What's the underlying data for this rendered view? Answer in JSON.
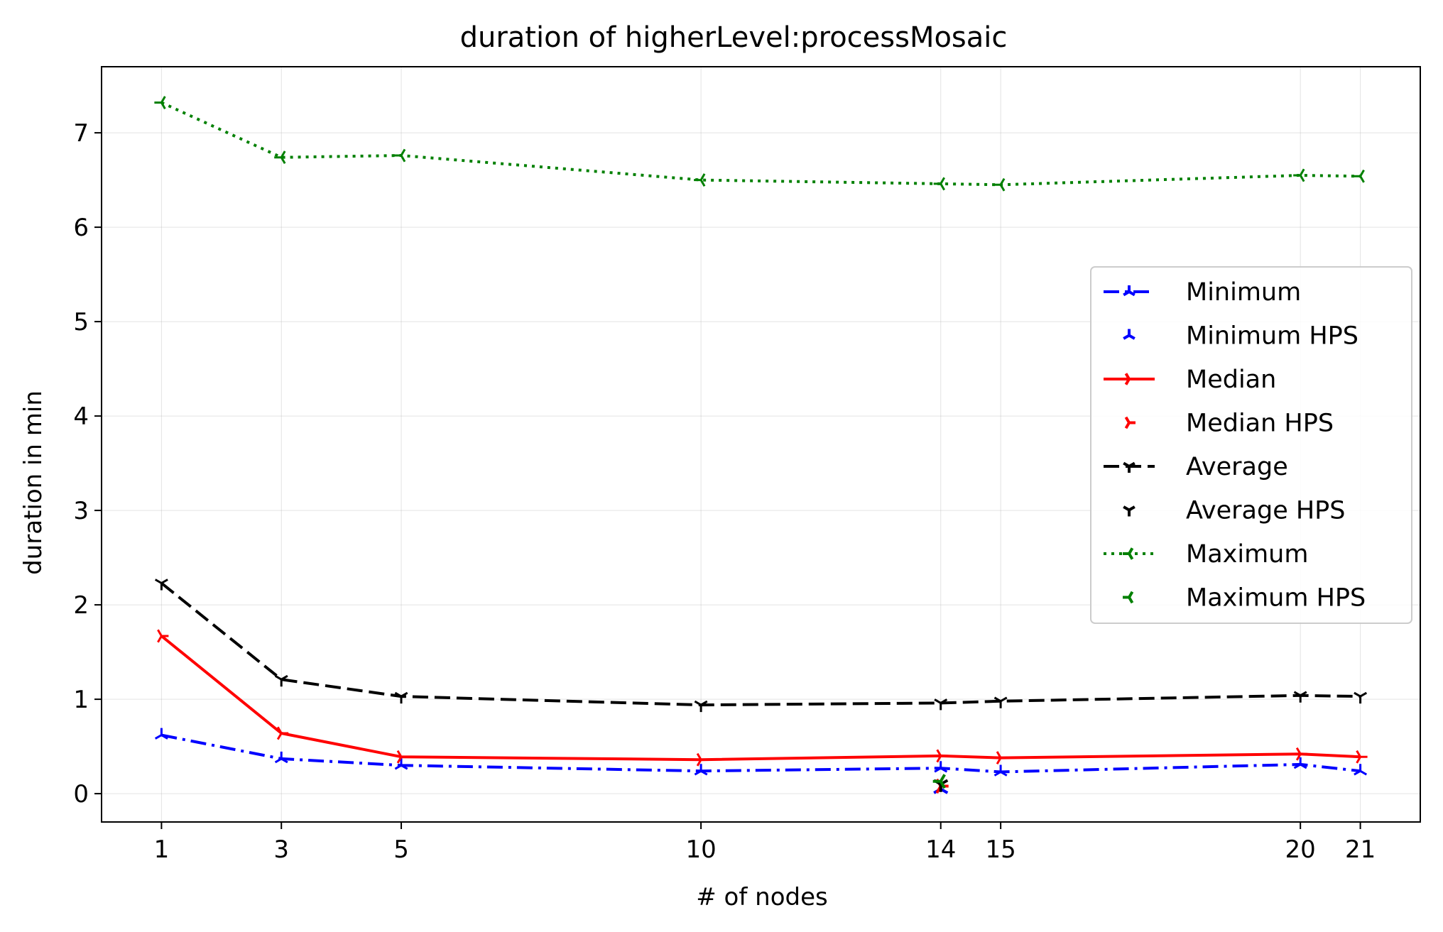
{
  "chart_data": {
    "type": "line",
    "title": "duration of higherLevel:processMosaic",
    "xlabel": "# of nodes",
    "ylabel": "duration in min",
    "xlim": [
      0,
      22
    ],
    "ylim": [
      -0.3,
      7.7
    ],
    "xticks": [
      1,
      3,
      5,
      10,
      14,
      15,
      20,
      21
    ],
    "yticks": [
      0,
      1,
      2,
      3,
      4,
      5,
      6,
      7
    ],
    "grid": true,
    "legend_position": "center-right",
    "series": [
      {
        "name": "Minimum",
        "color": "#0000ff",
        "dash": "dashdot",
        "marker": "tri-up",
        "x": [
          1,
          3,
          5,
          10,
          14,
          15,
          20,
          21
        ],
        "y": [
          0.62,
          0.37,
          0.3,
          0.24,
          0.27,
          0.23,
          0.31,
          0.24
        ]
      },
      {
        "name": "Minimum HPS",
        "color": "#0000ff",
        "dash": "none",
        "marker": "tri-up",
        "x": [
          14
        ],
        "y": [
          0.05
        ]
      },
      {
        "name": "Median",
        "color": "#ff0000",
        "dash": "solid",
        "marker": "tri-right",
        "x": [
          1,
          3,
          5,
          10,
          14,
          15,
          20,
          21
        ],
        "y": [
          1.67,
          0.64,
          0.39,
          0.36,
          0.4,
          0.38,
          0.42,
          0.39
        ]
      },
      {
        "name": "Median HPS",
        "color": "#ff0000",
        "dash": "none",
        "marker": "tri-right",
        "x": [
          14
        ],
        "y": [
          0.08
        ]
      },
      {
        "name": "Average",
        "color": "#000000",
        "dash": "dashed",
        "marker": "tri-down",
        "x": [
          1,
          3,
          5,
          10,
          14,
          15,
          20,
          21
        ],
        "y": [
          2.23,
          1.21,
          1.03,
          0.94,
          0.96,
          0.98,
          1.04,
          1.03
        ]
      },
      {
        "name": "Average HPS",
        "color": "#000000",
        "dash": "none",
        "marker": "tri-down",
        "x": [
          14
        ],
        "y": [
          0.1
        ]
      },
      {
        "name": "Maximum",
        "color": "#008000",
        "dash": "dotted",
        "marker": "tri-left",
        "x": [
          1,
          3,
          5,
          10,
          14,
          15,
          20,
          21
        ],
        "y": [
          7.32,
          6.74,
          6.76,
          6.5,
          6.46,
          6.45,
          6.55,
          6.54
        ]
      },
      {
        "name": "Maximum HPS",
        "color": "#008000",
        "dash": "none",
        "marker": "tri-left",
        "x": [
          14
        ],
        "y": [
          0.13
        ]
      }
    ]
  }
}
